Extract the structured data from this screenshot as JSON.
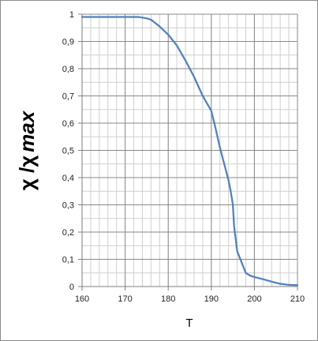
{
  "chart_data": {
    "type": "line",
    "title": "",
    "xlabel": "T",
    "ylabel_prefix": "χ /χ",
    "ylabel_italic": "max",
    "xlim": [
      160,
      210
    ],
    "ylim": [
      0,
      1
    ],
    "x_ticks": [
      160,
      170,
      180,
      190,
      200,
      210
    ],
    "x_tick_labels": [
      "160",
      "170",
      "180",
      "190",
      "200",
      "210"
    ],
    "y_ticks": [
      0,
      0.1,
      0.2,
      0.3,
      0.4,
      0.5,
      0.6,
      0.7,
      0.8,
      0.9,
      1
    ],
    "y_tick_labels": [
      "0",
      "0,1",
      "0,2",
      "0,3",
      "0,4",
      "0,5",
      "0,6",
      "0,7",
      "0,8",
      "0,9",
      "1"
    ],
    "grid": true,
    "x_minor_step": 2,
    "y_minor_step": 0.05,
    "series": [
      {
        "color": "#4f81bd",
        "x": [
          160,
          165,
          170,
          173,
          175,
          176,
          178,
          180,
          182,
          184,
          186,
          188,
          190,
          191,
          192,
          193,
          194,
          194.5,
          195,
          195.3,
          195.7,
          196,
          197,
          198,
          199,
          200,
          202,
          204,
          206,
          208,
          210
        ],
        "y": [
          0.99,
          0.99,
          0.99,
          0.99,
          0.985,
          0.98,
          0.955,
          0.925,
          0.885,
          0.83,
          0.77,
          0.7,
          0.645,
          0.58,
          0.51,
          0.45,
          0.39,
          0.35,
          0.3,
          0.22,
          0.17,
          0.13,
          0.09,
          0.05,
          0.04,
          0.035,
          0.027,
          0.018,
          0.01,
          0.006,
          0.005
        ]
      }
    ]
  }
}
